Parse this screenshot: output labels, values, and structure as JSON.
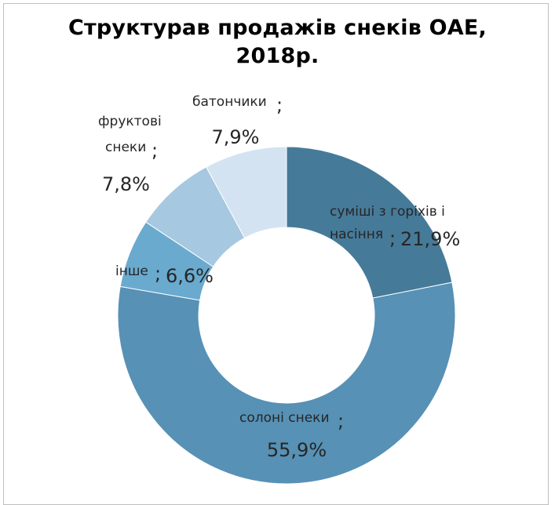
{
  "title": {
    "line1": "Структурав продажів снеків ОАЕ,",
    "line2": "2018р."
  },
  "chart_data": {
    "type": "pie",
    "variant": "donut",
    "title": "Структурав продажів снеків ОАЕ, 2018р.",
    "legend": "none",
    "slices": [
      {
        "name_lines": [
          "суміші з горіхів і",
          "насіння"
        ],
        "value": 21.9,
        "label": "21,9%",
        "color": "#467a99"
      },
      {
        "name_lines": [
          "солоні снеки"
        ],
        "value": 55.9,
        "label": "55,9%",
        "color": "#5791b5"
      },
      {
        "name_lines": [
          "інше"
        ],
        "value": 6.6,
        "label": "6,6%",
        "color": "#6aaace"
      },
      {
        "name_lines": [
          "фруктові",
          "снеки"
        ],
        "value": 7.8,
        "label": "7,8%",
        "color": "#a6c8e0"
      },
      {
        "name_lines": [
          "батончики"
        ],
        "value": 7.9,
        "label": "7,9%",
        "color": "#d3e3f1"
      }
    ],
    "separator": ";"
  }
}
